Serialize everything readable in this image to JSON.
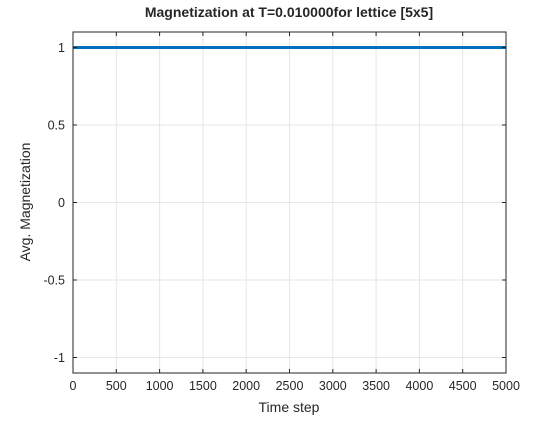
{
  "chart_data": {
    "type": "line",
    "title": "Magnetization at T=0.010000for lettice [5x5]",
    "xlabel": "Time step",
    "ylabel": "Avg. Magnetization",
    "xlim": [
      0,
      5000
    ],
    "ylim": [
      -1.1,
      1.1
    ],
    "xticks": [
      0,
      500,
      1000,
      1500,
      2000,
      2500,
      3000,
      3500,
      4000,
      4500,
      5000
    ],
    "xtick_labels": [
      "0",
      "500",
      "1000",
      "1500",
      "2000",
      "2500",
      "3000",
      "3500",
      "4000",
      "4500",
      "5000"
    ],
    "yticks": [
      1,
      0.5,
      0,
      -0.5,
      -1
    ],
    "ytick_labels": [
      "1",
      "0.5",
      "0",
      "-0.5",
      "-1"
    ],
    "grid": true,
    "series": [
      {
        "x": [
          0,
          5000
        ],
        "values": [
          1,
          1
        ],
        "color": "#0072BD"
      }
    ],
    "colors": {
      "line": "#0072BD",
      "grid": "#e6e6e6",
      "axis": "#262626"
    }
  }
}
